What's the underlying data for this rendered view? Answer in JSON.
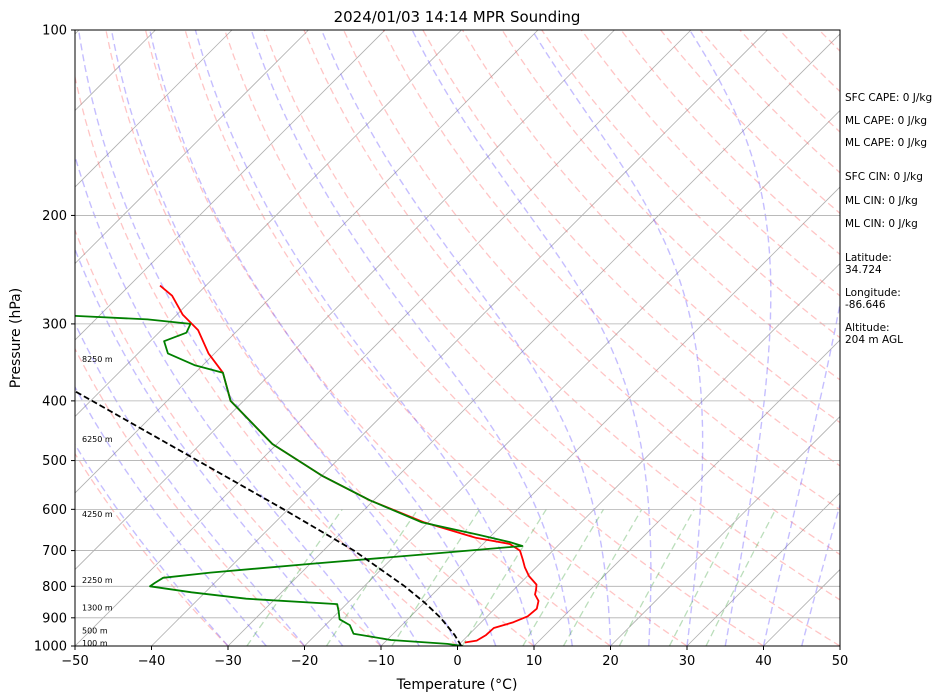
{
  "chart_data": {
    "type": "line",
    "diagram": "skew-T log-P",
    "title": "2024/01/03 14:14 MPR Sounding",
    "xlabel": "Temperature (°C)",
    "ylabel": "Pressure (hPa)",
    "xlim": [
      -50,
      50
    ],
    "ylim": [
      1000,
      100
    ],
    "y_scale": "log",
    "x_ticks": [
      -50,
      -40,
      -30,
      -20,
      -10,
      0,
      10,
      20,
      30,
      40,
      50
    ],
    "x_tick_labels": [
      "−50",
      "−40",
      "−30",
      "−20",
      "−10",
      "0",
      "10",
      "20",
      "30",
      "40",
      "50"
    ],
    "y_ticks": [
      1000,
      900,
      800,
      700,
      600,
      500,
      400,
      300,
      200,
      100
    ],
    "y_tick_labels": [
      "1000",
      "900",
      "800",
      "700",
      "600",
      "500",
      "400",
      "300",
      "200",
      "100"
    ],
    "height_labels": [
      {
        "text": "100 m",
        "pressure": 988
      },
      {
        "text": "500 m",
        "pressure": 944
      },
      {
        "text": "1300 m",
        "pressure": 866
      },
      {
        "text": "2250 m",
        "pressure": 782
      },
      {
        "text": "4250 m",
        "pressure": 610
      },
      {
        "text": "6250 m",
        "pressure": 461
      },
      {
        "text": "8250 m",
        "pressure": 342
      }
    ],
    "series": [
      {
        "color": "#ff0000",
        "points": [
          [
            987,
            0.5
          ],
          [
            980,
            1.8
          ],
          [
            960,
            2.3
          ],
          [
            935,
            2.4
          ],
          [
            915,
            4.2
          ],
          [
            895,
            5.3
          ],
          [
            870,
            5.5
          ],
          [
            845,
            4.7
          ],
          [
            825,
            3.4
          ],
          [
            810,
            2.9
          ],
          [
            795,
            2.3
          ],
          [
            770,
            0.2
          ],
          [
            745,
            -1.5
          ],
          [
            725,
            -2.7
          ],
          [
            700,
            -4.3
          ],
          [
            683,
            -6.5
          ],
          [
            667,
            -11.8
          ],
          [
            630,
            -20.5
          ],
          [
            580,
            -30.5
          ],
          [
            530,
            -39.8
          ],
          [
            470,
            -50.6
          ],
          [
            400,
            -61.7
          ],
          [
            360,
            -66.4
          ],
          [
            335,
            -70.8
          ],
          [
            307,
            -75.2
          ],
          [
            290,
            -79.2
          ],
          [
            270,
            -83.1
          ],
          [
            260,
            -86.0
          ]
        ]
      },
      {
        "color": "#008000",
        "points": [
          [
            1000,
            0.7
          ],
          [
            992,
            -1.6
          ],
          [
            978,
            -9.5
          ],
          [
            955,
            -15.2
          ],
          [
            925,
            -16.8
          ],
          [
            905,
            -18.9
          ],
          [
            880,
            -20.0
          ],
          [
            855,
            -21.2
          ],
          [
            838,
            -33.8
          ],
          [
            818,
            -41.8
          ],
          [
            800,
            -48.0
          ],
          [
            790,
            -47.8
          ],
          [
            775,
            -47.4
          ],
          [
            760,
            -41.9
          ],
          [
            735,
            -29.6
          ],
          [
            710,
            -16.3
          ],
          [
            688,
            -4.6
          ],
          [
            678,
            -6.8
          ],
          [
            660,
            -11.8
          ],
          [
            630,
            -20.8
          ],
          [
            580,
            -30.5
          ],
          [
            530,
            -39.8
          ],
          [
            470,
            -50.6
          ],
          [
            400,
            -61.7
          ],
          [
            360,
            -66.4
          ],
          [
            350,
            -71.1
          ],
          [
            335,
            -76.1
          ],
          [
            320,
            -78.2
          ],
          [
            310,
            -76.4
          ],
          [
            300,
            -77.0
          ],
          [
            295,
            -83.2
          ],
          [
            285,
            -109.2
          ],
          [
            281,
            -121.4
          ]
        ]
      },
      {
        "color": "#000000",
        "dashed": true,
        "points": [
          [
            1000,
            0.5
          ],
          [
            960,
            -1.8
          ],
          [
            900,
            -5.9
          ],
          [
            850,
            -10.0
          ],
          [
            800,
            -14.7
          ],
          [
            700,
            -26.0
          ],
          [
            600,
            -40.6
          ],
          [
            500,
            -58.2
          ],
          [
            400,
            -79.8
          ],
          [
            300,
            -107.8
          ]
        ]
      }
    ],
    "info_panel": [
      "SFC CAPE: 0 J/kg",
      "ML CAPE: 0 J/kg",
      "ML CAPE: 0 J/kg",
      "SFC CIN: 0 J/kg",
      "ML CIN: 0 J/kg",
      "ML CIN: 0 J/kg",
      "Latitude:\n34.724",
      "Longitude:\n-86.646",
      "Altitude:\n204 m AGL"
    ],
    "grid": true,
    "reference_lines": [
      "isotherms",
      "dry adiabats",
      "moist adiabats",
      "mixing ratio lines"
    ]
  }
}
